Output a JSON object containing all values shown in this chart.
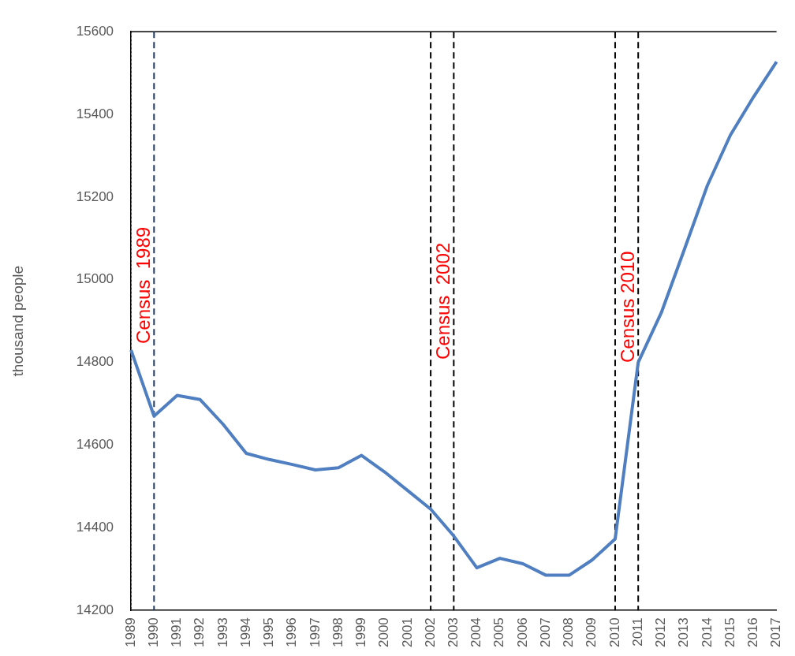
{
  "chart_data": {
    "type": "line",
    "ylabel": "thousand people",
    "categories": [
      "1989",
      "1990",
      "1991",
      "1992",
      "1993",
      "1994",
      "1995",
      "1996",
      "1997",
      "1998",
      "1999",
      "2000",
      "2001",
      "2002",
      "2003",
      "2004",
      "2005",
      "2006",
      "2007",
      "2008",
      "2009",
      "2010",
      "2011",
      "2012",
      "2013",
      "2014",
      "2015",
      "2016",
      "2017"
    ],
    "series": [
      {
        "color": "#4f7fc0",
        "values": [
          14830,
          14670,
          14720,
          14710,
          14650,
          14580,
          14565,
          14553,
          14540,
          14545,
          14575,
          14535,
          14490,
          14445,
          14380,
          14303,
          14326,
          14313,
          14285,
          14285,
          14322,
          14373,
          14800,
          14920,
          15073,
          15228,
          15350,
          15442,
          15527
        ]
      }
    ],
    "ylim": [
      14200,
      15600
    ],
    "yticks": [
      14200,
      14400,
      14600,
      14800,
      15000,
      15200,
      15400,
      15600
    ],
    "grid": false,
    "legend": false,
    "marker": "none",
    "line_style": "solid",
    "ref_lines": [
      {
        "axis": "x",
        "value": "1989",
        "label": "Census  1989",
        "color": "#000000",
        "line_style": "dotted"
      },
      {
        "axis": "x",
        "value": "1990",
        "label": null,
        "color": "#1f3864",
        "line_style": "dashed"
      },
      {
        "axis": "x",
        "value": "2002",
        "label": "Census  2002",
        "color": "#000000",
        "line_style": "dashed"
      },
      {
        "axis": "x",
        "value": "2003",
        "label": null,
        "color": "#000000",
        "line_style": "dashed"
      },
      {
        "axis": "x",
        "value": "2010",
        "label": "Census 2010",
        "color": "#000000",
        "line_style": "dashed"
      },
      {
        "axis": "x",
        "value": "2011",
        "label": null,
        "color": "#000000",
        "line_style": "dashed"
      }
    ]
  }
}
